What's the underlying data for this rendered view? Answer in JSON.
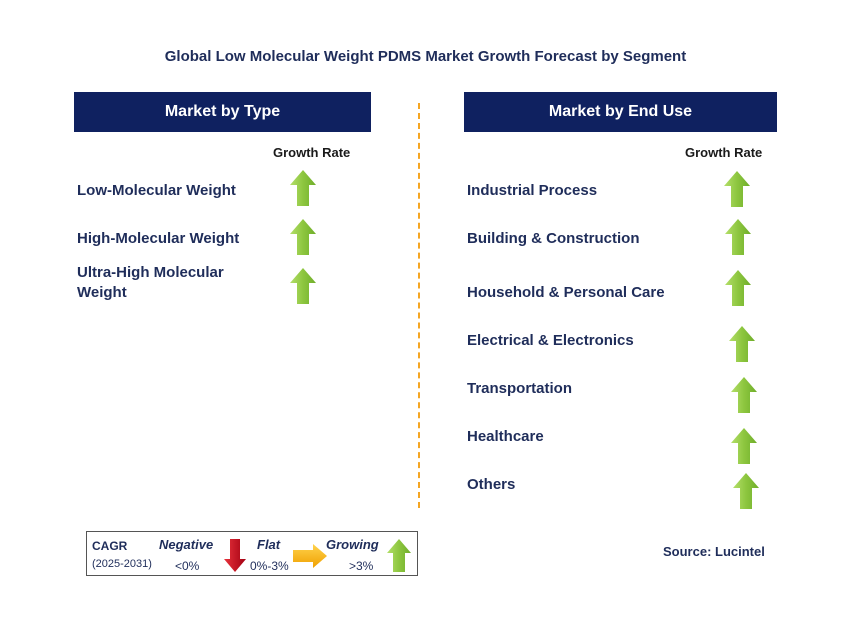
{
  "title": "Global Low Molecular Weight PDMS Market Growth Forecast by Segment",
  "left_panel": {
    "header": "Market by Type",
    "column_label": "Growth Rate",
    "segments": [
      {
        "label": "Low-Molecular Weight",
        "trend": "growing"
      },
      {
        "label": "High-Molecular Weight",
        "trend": "growing"
      },
      {
        "label": "Ultra-High Molecular Weight",
        "trend": "growing"
      }
    ]
  },
  "right_panel": {
    "header": "Market by End Use",
    "column_label": "Growth Rate",
    "segments": [
      {
        "label": "Industrial Process",
        "trend": "growing"
      },
      {
        "label": "Building & Construction",
        "trend": "growing"
      },
      {
        "label": "Household & Personal Care",
        "trend": "growing"
      },
      {
        "label": "Electrical & Electronics",
        "trend": "growing"
      },
      {
        "label": "Transportation",
        "trend": "growing"
      },
      {
        "label": "Healthcare",
        "trend": "growing"
      },
      {
        "label": "Others",
        "trend": "growing"
      }
    ]
  },
  "legend": {
    "cagr_label": "CAGR",
    "period": "(2025-2031)",
    "negative_label": "Negative",
    "negative_range": "<0%",
    "flat_label": "Flat",
    "flat_range": "0%-3%",
    "growing_label": "Growing",
    "growing_range": ">3%"
  },
  "source": "Source: Lucintel",
  "colors": {
    "header_bg": "#0f2160",
    "text": "#1f2d5a",
    "growing": "#8dc63f",
    "negative": "#d0021b",
    "flat": "#f5a623",
    "divider": "#f5a623"
  }
}
